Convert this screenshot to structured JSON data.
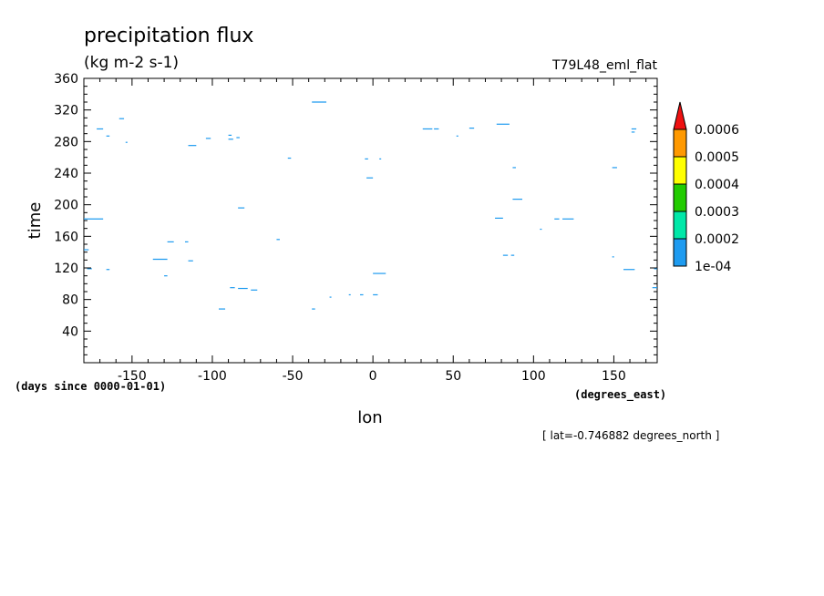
{
  "chart_data": {
    "type": "heatmap",
    "title": "precipitation flux",
    "units": "(kg m-2 s-1)",
    "experiment": "T79L48_eml_flat",
    "xlabel": "lon",
    "ylabel": "time",
    "x_units": "(degrees_east)",
    "y_units": "(days since 0000-01-01)",
    "slice_note": "[ lat=-0.746882 degrees_north ]",
    "xlim": [
      -180,
      177
    ],
    "ylim": [
      0,
      360
    ],
    "x_ticks": [
      -150,
      -100,
      -50,
      0,
      50,
      100,
      150
    ],
    "x_tick_labels": [
      "-150",
      "-100",
      "-50",
      "0",
      "50",
      "100",
      "150"
    ],
    "y_ticks": [
      40,
      80,
      120,
      160,
      200,
      240,
      280,
      320,
      360
    ],
    "y_tick_labels": [
      "40",
      "80",
      "120",
      "160",
      "200",
      "240",
      "280",
      "320",
      "360"
    ],
    "colorbar": {
      "levels": [
        "1e-04",
        "0.0002",
        "0.0003",
        "0.0004",
        "0.0005",
        "0.0006"
      ],
      "colors": [
        "#1e9bf0",
        "#00e8a8",
        "#22cc00",
        "#ffff00",
        "#ff9900",
        "#ee1111"
      ],
      "extend": "max"
    },
    "features": [
      {
        "lon0": -180,
        "lon1": -168,
        "time": 182
      },
      {
        "lon0": -172,
        "lon1": -168,
        "time": 296
      },
      {
        "lon0": -158,
        "lon1": -155,
        "time": 309
      },
      {
        "lon0": -166,
        "lon1": -164,
        "time": 287
      },
      {
        "lon0": -154,
        "lon1": -153,
        "time": 279
      },
      {
        "lon0": -180,
        "lon1": -177,
        "time": 143
      },
      {
        "lon0": -178,
        "lon1": -175,
        "time": 119
      },
      {
        "lon0": -166,
        "lon1": -164,
        "time": 118
      },
      {
        "lon0": -137,
        "lon1": -128,
        "time": 131
      },
      {
        "lon0": -128,
        "lon1": -124,
        "time": 153
      },
      {
        "lon0": -130,
        "lon1": -128,
        "time": 110
      },
      {
        "lon0": -117,
        "lon1": -115,
        "time": 153
      },
      {
        "lon0": -115,
        "lon1": -112,
        "time": 129
      },
      {
        "lon0": -115,
        "lon1": -110,
        "time": 275
      },
      {
        "lon0": -104,
        "lon1": -101,
        "time": 284
      },
      {
        "lon0": -90,
        "lon1": -88,
        "time": 288
      },
      {
        "lon0": -90,
        "lon1": -87,
        "time": 283
      },
      {
        "lon0": -85,
        "lon1": -83,
        "time": 285
      },
      {
        "lon0": -84,
        "lon1": -80,
        "time": 196
      },
      {
        "lon0": -89,
        "lon1": -86,
        "time": 95
      },
      {
        "lon0": -84,
        "lon1": -78,
        "time": 94
      },
      {
        "lon0": -76,
        "lon1": -72,
        "time": 92
      },
      {
        "lon0": -96,
        "lon1": -92,
        "time": 68
      },
      {
        "lon0": -60,
        "lon1": -58,
        "time": 156
      },
      {
        "lon0": -53,
        "lon1": -51,
        "time": 259
      },
      {
        "lon0": -38,
        "lon1": -29,
        "time": 330
      },
      {
        "lon0": -38,
        "lon1": -36,
        "time": 68
      },
      {
        "lon0": -27,
        "lon1": -26,
        "time": 83
      },
      {
        "lon0": -15,
        "lon1": -14,
        "time": 86
      },
      {
        "lon0": -8,
        "lon1": -6,
        "time": 86
      },
      {
        "lon0": -5,
        "lon1": -3,
        "time": 258
      },
      {
        "lon0": -4,
        "lon1": 0,
        "time": 234
      },
      {
        "lon0": 4,
        "lon1": 5,
        "time": 258
      },
      {
        "lon0": 0,
        "lon1": 8,
        "time": 113
      },
      {
        "lon0": 0,
        "lon1": 3,
        "time": 86
      },
      {
        "lon0": 31,
        "lon1": 37,
        "time": 296
      },
      {
        "lon0": 38,
        "lon1": 41,
        "time": 296
      },
      {
        "lon0": 52,
        "lon1": 53,
        "time": 287
      },
      {
        "lon0": 60,
        "lon1": 63,
        "time": 297
      },
      {
        "lon0": 77,
        "lon1": 85,
        "time": 302
      },
      {
        "lon0": 87,
        "lon1": 89,
        "time": 247
      },
      {
        "lon0": 87,
        "lon1": 93,
        "time": 207
      },
      {
        "lon0": 76,
        "lon1": 81,
        "time": 183
      },
      {
        "lon0": 81,
        "lon1": 84,
        "time": 136
      },
      {
        "lon0": 86,
        "lon1": 88,
        "time": 136
      },
      {
        "lon0": 104,
        "lon1": 105,
        "time": 169
      },
      {
        "lon0": 113,
        "lon1": 116,
        "time": 182
      },
      {
        "lon0": 118,
        "lon1": 125,
        "time": 182
      },
      {
        "lon0": 149,
        "lon1": 152,
        "time": 247
      },
      {
        "lon0": 149,
        "lon1": 150,
        "time": 134
      },
      {
        "lon0": 156,
        "lon1": 163,
        "time": 118
      },
      {
        "lon0": 161,
        "lon1": 164,
        "time": 296
      },
      {
        "lon0": 161,
        "lon1": 163,
        "time": 292
      },
      {
        "lon0": 175,
        "lon1": 177,
        "time": 119
      },
      {
        "lon0": 174,
        "lon1": 177,
        "time": 95
      }
    ]
  }
}
